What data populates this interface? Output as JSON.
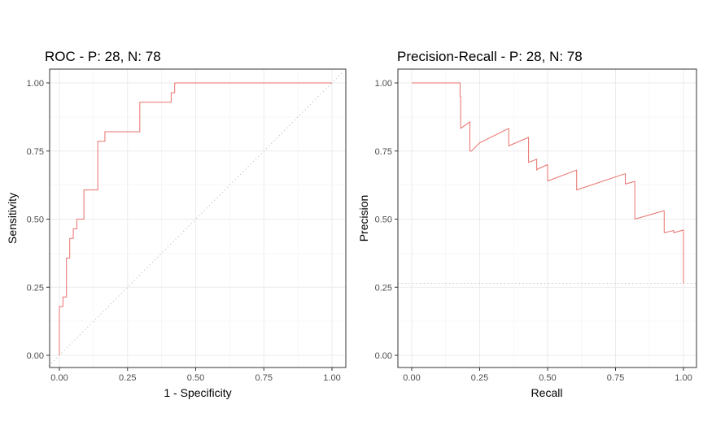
{
  "chart_data": [
    {
      "type": "line",
      "title": "ROC - P: 28, N: 78",
      "xlabel": "1 - Specificity",
      "ylabel": "Sensitivity",
      "xlim": [
        0,
        1
      ],
      "ylim": [
        0,
        1
      ],
      "x_ticks": [
        "0.00",
        "0.25",
        "0.50",
        "0.75",
        "1.00"
      ],
      "y_ticks": [
        "0.00",
        "0.25",
        "0.50",
        "0.75",
        "1.00"
      ],
      "grid": true,
      "line_color": "#e8706b",
      "reference_line": {
        "style": "dotted",
        "from": [
          0,
          0
        ],
        "to": [
          1,
          1
        ]
      },
      "series": [
        {
          "x": [
            0,
            0,
            0.013,
            0.013,
            0.026,
            0.026,
            0.038,
            0.038,
            0.051,
            0.051,
            0.064,
            0.064,
            0.077,
            0.077,
            0.09,
            0.09,
            0.103,
            0.103,
            0.141,
            0.141,
            0.167,
            0.167,
            0.295,
            0.295,
            0.41,
            0.41,
            0.423,
            0.423,
            1.0
          ],
          "y": [
            0,
            0.179,
            0.179,
            0.214,
            0.214,
            0.357,
            0.357,
            0.429,
            0.429,
            0.464,
            0.464,
            0.5,
            0.5,
            0.5,
            0.5,
            0.607,
            0.607,
            0.607,
            0.607,
            0.786,
            0.786,
            0.821,
            0.821,
            0.929,
            0.929,
            0.964,
            0.964,
            1.0,
            1.0
          ]
        }
      ]
    },
    {
      "type": "line",
      "title": "Precision-Recall - P: 28, N: 78",
      "xlabel": "Recall",
      "ylabel": "Precision",
      "xlim": [
        0,
        1
      ],
      "ylim": [
        0,
        1
      ],
      "x_ticks": [
        "0.00",
        "0.25",
        "0.50",
        "0.75",
        "1.00"
      ],
      "y_ticks": [
        "0.00",
        "0.25",
        "0.50",
        "0.75",
        "1.00"
      ],
      "grid": true,
      "line_color": "#e8706b",
      "reference_line": {
        "style": "dotted",
        "y": 0.264
      },
      "series": [
        {
          "x": [
            0,
            0.178,
            0.178,
            0.18,
            0.18,
            0.214,
            0.214,
            0.22,
            0.22,
            0.25,
            0.357,
            0.357,
            0.43,
            0.43,
            0.46,
            0.46,
            0.464,
            0.464,
            0.5,
            0.5,
            0.5,
            0.5,
            0.607,
            0.607,
            0.786,
            0.786,
            0.82,
            0.821,
            0.821,
            0.929,
            0.929,
            0.964,
            0.964,
            1.0,
            1.0
          ],
          "y": [
            1.0,
            1.0,
            0.95,
            0.95,
            0.833,
            0.857,
            0.75,
            0.75,
            0.75,
            0.78,
            0.833,
            0.769,
            0.8,
            0.708,
            0.72,
            0.68,
            0.684,
            0.684,
            0.7,
            0.64,
            0.64,
            0.64,
            0.68,
            0.607,
            0.667,
            0.629,
            0.638,
            0.638,
            0.5,
            0.531,
            0.45,
            0.458,
            0.45,
            0.46,
            0.264
          ]
        }
      ]
    }
  ]
}
